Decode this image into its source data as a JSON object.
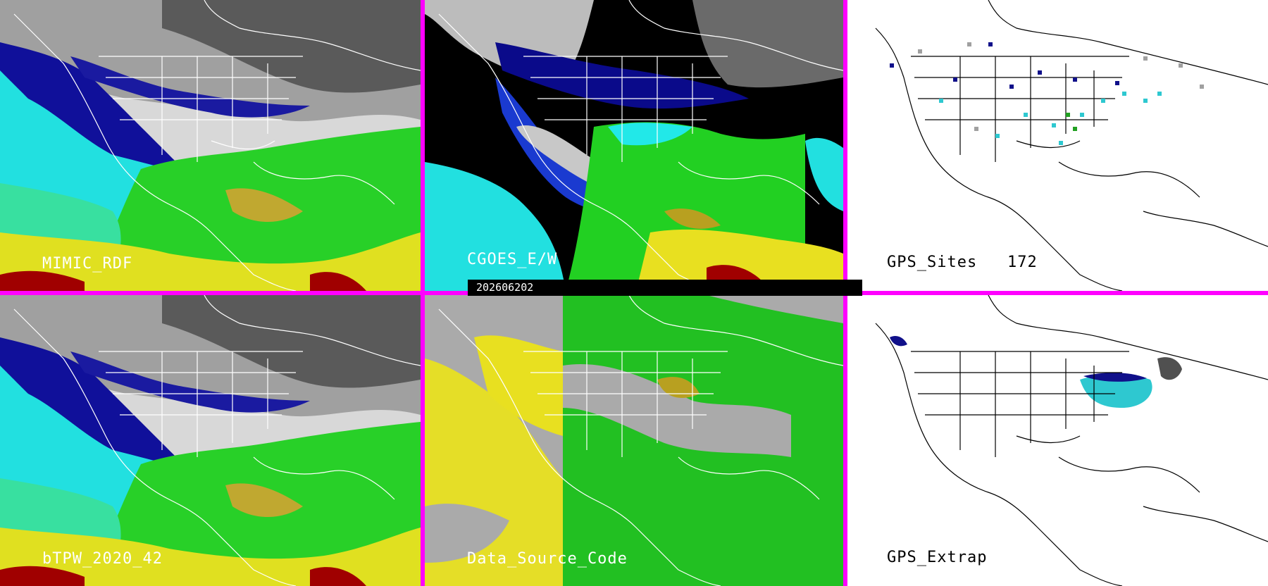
{
  "panels": [
    {
      "id": "mimic",
      "label": "MIMIC_RDF"
    },
    {
      "id": "cgoes",
      "label": "CGOES_E/W"
    },
    {
      "id": "gps_sites",
      "label": "GPS_Sites",
      "count": "172"
    },
    {
      "id": "btpw",
      "label": "bTPW_2020_42"
    },
    {
      "id": "dsc",
      "label": "Data_Source_Code"
    },
    {
      "id": "gps_extrap",
      "label": "GPS_Extrap"
    }
  ],
  "timestamp": "202606202",
  "colors": {
    "border": "#ff00ff",
    "gray_low": "#4a4a4a",
    "gray_high": "#c8c8c8",
    "navy": "#0a0a8a",
    "blue": "#1a3ad0",
    "cyan": "#22e8e8",
    "green": "#22d022",
    "yellow": "#e8e020",
    "olive": "#b8a020",
    "dark_red": "#a00000",
    "map_lines": "#ffffff"
  },
  "icons": [
    "coastline-outline",
    "state-boundaries",
    "gps-site-marker"
  ]
}
